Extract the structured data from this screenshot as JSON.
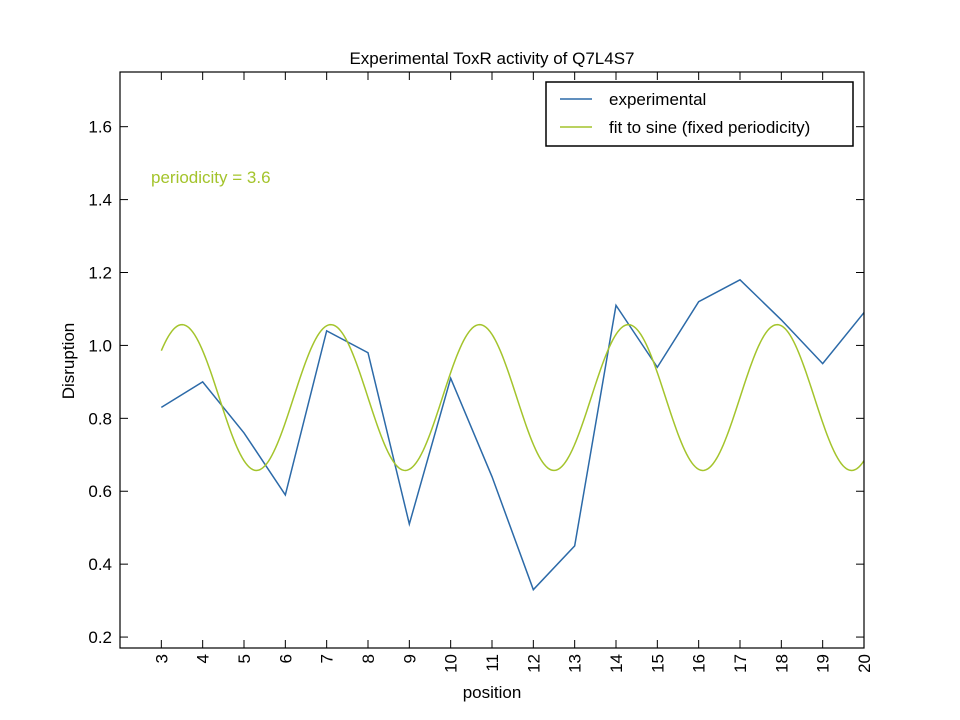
{
  "chart_data": {
    "type": "line",
    "title": "Experimental ToxR activity of Q7L4S7",
    "xlabel": "position",
    "ylabel": "Disruption",
    "xlim": [
      2,
      20
    ],
    "ylim": [
      0.17,
      1.75
    ],
    "xticks": [
      3,
      4,
      5,
      6,
      7,
      8,
      9,
      10,
      11,
      12,
      13,
      14,
      15,
      16,
      17,
      18,
      19,
      20
    ],
    "yticks": [
      0.2,
      0.4,
      0.6,
      0.8,
      1.0,
      1.2,
      1.4,
      1.6
    ],
    "ytick_labels": [
      "0.2",
      "0.4",
      "0.6",
      "0.8",
      "1.0",
      "1.2",
      "1.4",
      "1.6"
    ],
    "grid": false,
    "legend_position": "top-right",
    "series": [
      {
        "name": "experimental",
        "color": "#2c6aa8",
        "x": [
          3,
          4,
          5,
          6,
          7,
          8,
          9,
          10,
          11,
          12,
          13,
          14,
          15,
          16,
          17,
          18,
          19,
          20
        ],
        "y": [
          0.83,
          0.9,
          0.76,
          0.59,
          1.04,
          0.98,
          0.51,
          0.91,
          0.64,
          0.33,
          0.45,
          1.11,
          0.94,
          1.12,
          1.18,
          1.07,
          0.95,
          1.09
        ]
      },
      {
        "name": "fit to sine (fixed periodicity)",
        "color": "#a4c42c",
        "x_start": 3,
        "x_end": 20,
        "offset": 0.857,
        "amplitude": 0.2,
        "period": 3.6,
        "phase_peak_x": 3.5
      }
    ],
    "annotations": [
      {
        "text": "periodicity = 3.6",
        "x": 2.75,
        "y": 1.445,
        "color": "#a4c42c"
      }
    ]
  }
}
